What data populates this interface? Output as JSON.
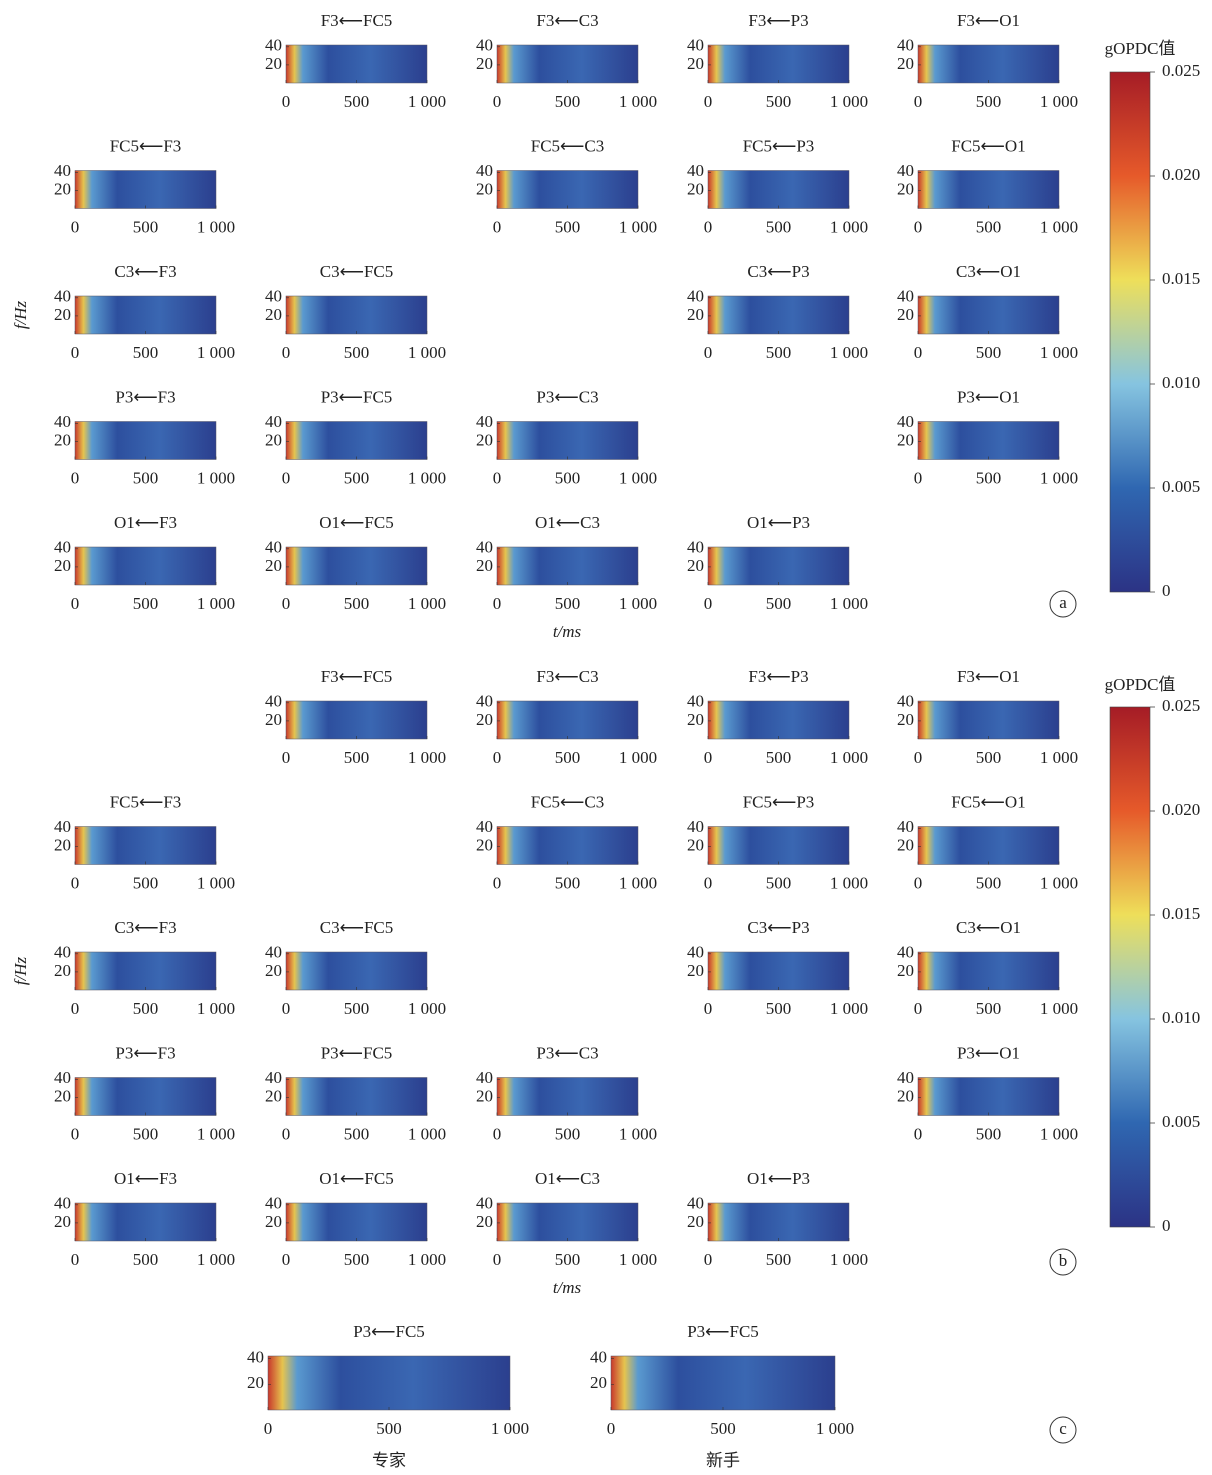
{
  "figures": [
    {
      "label": "a",
      "rows": [
        [
          null,
          "F3⟵FC5",
          "F3⟵C3",
          "F3⟵P3",
          "F3⟵O1"
        ],
        [
          "FC5⟵F3",
          null,
          "FC5⟵C3",
          "FC5⟵P3",
          "FC5⟵O1"
        ],
        [
          "C3⟵F3",
          "C3⟵FC5",
          null,
          "C3⟵P3",
          "C3⟵O1"
        ],
        [
          "P3⟵F3",
          "P3⟵FC5",
          "P3⟵C3",
          null,
          "P3⟵O1"
        ],
        [
          "O1⟵F3",
          "O1⟵FC5",
          "O1⟵C3",
          "O1⟵P3",
          null
        ]
      ],
      "ylabel": "f/Hz",
      "xlabel": "t/ms",
      "colorbar": {
        "label": "gOPDC值",
        "ylim": [
          0,
          0.025
        ],
        "yticks": [
          0,
          0.005,
          {
            "value": 0.01,
            "label": "0.010"
          },
          0.015,
          {
            "value": 0.02,
            "label": "0.020"
          },
          0.025
        ]
      }
    },
    {
      "label": "b",
      "rows": [
        [
          null,
          "F3⟵FC5",
          "F3⟵C3",
          "F3⟵P3",
          "F3⟵O1"
        ],
        [
          "FC5⟵F3",
          null,
          "FC5⟵C3",
          "FC5⟵P3",
          "FC5⟵O1"
        ],
        [
          "C3⟵F3",
          "C3⟵FC5",
          null,
          "C3⟵P3",
          "C3⟵O1"
        ],
        [
          "P3⟵F3",
          "P3⟵FC5",
          "P3⟵C3",
          null,
          "P3⟵O1"
        ],
        [
          "O1⟵F3",
          "O1⟵FC5",
          "O1⟵C3",
          "O1⟵P3",
          null
        ]
      ],
      "ylabel": "f/Hz",
      "xlabel": "t/ms",
      "colorbar": {
        "label": "gOPDC值",
        "ylim": [
          0,
          0.025
        ],
        "yticks": [
          0,
          0.005,
          {
            "value": 0.01,
            "label": "0.010"
          },
          0.015,
          {
            "value": 0.02,
            "label": "0.020"
          },
          0.025
        ]
      }
    },
    {
      "label": "c",
      "panels": [
        {
          "title": "P3⟵FC5",
          "caption": "专家"
        },
        {
          "title": "P3⟵FC5",
          "caption": "新手"
        }
      ]
    }
  ],
  "axes": {
    "xlim": [
      0,
      1000
    ],
    "xticks": [
      0,
      500,
      {
        "value": 1000,
        "label": "1 000"
      }
    ],
    "ylim": [
      0,
      42
    ],
    "yticks": [
      20,
      40
    ]
  }
}
